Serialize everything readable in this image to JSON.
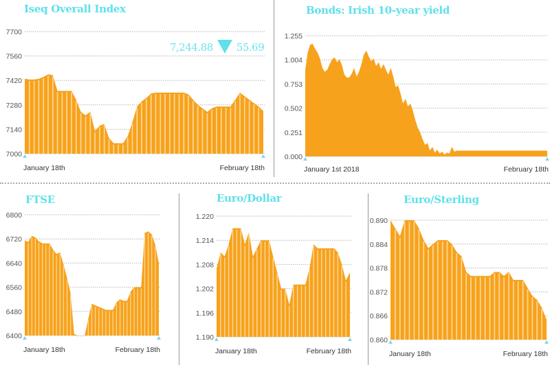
{
  "colors": {
    "fill": "#f7a21c",
    "stripe": "#fbd79a",
    "title": "#5fe0ea",
    "axis_marker": "#7fd6e8",
    "grid": "#b5b5b5"
  },
  "iseq_readout": {
    "value": "7,244.88",
    "direction": "down-triangle-icon",
    "change": "55.69"
  },
  "chart_data": [
    {
      "id": "iseq",
      "type": "area",
      "title": "Iseq Overall Index",
      "yticks": [
        "7700",
        "7560",
        "7420",
        "7280",
        "7140",
        "7000"
      ],
      "ylim": [
        7000,
        7700
      ],
      "xlabels": [
        "January 18th",
        "February 18th"
      ],
      "grid": true,
      "values": [
        7430,
        7425,
        7425,
        7430,
        7440,
        7455,
        7450,
        7360,
        7360,
        7360,
        7360,
        7310,
        7240,
        7220,
        7240,
        7130,
        7160,
        7170,
        7090,
        7060,
        7060,
        7060,
        7100,
        7180,
        7270,
        7300,
        7320,
        7345,
        7350,
        7350,
        7350,
        7350,
        7350,
        7350,
        7350,
        7340,
        7310,
        7280,
        7260,
        7240,
        7260,
        7270,
        7270,
        7270,
        7270,
        7310,
        7350,
        7330,
        7310,
        7290,
        7270,
        7245
      ]
    },
    {
      "id": "bonds",
      "type": "area",
      "title": "Bonds: Irish 10-year yield",
      "yticks": [
        "1.255",
        "1.004",
        "0.753",
        "0.502",
        "0.251",
        "0.000"
      ],
      "ylim": [
        0.0,
        1.255
      ],
      "xlabels": [
        "January 1st 2018",
        "February 18th"
      ],
      "grid": true,
      "values": [
        0.9,
        1.08,
        1.16,
        1.17,
        1.12,
        1.08,
        1.02,
        0.92,
        0.88,
        0.9,
        0.96,
        1.01,
        1.03,
        0.98,
        1.01,
        0.95,
        0.85,
        0.82,
        0.82,
        0.86,
        0.92,
        0.83,
        0.88,
        0.96,
        1.06,
        1.1,
        1.04,
        0.99,
        1.02,
        0.94,
        0.98,
        0.91,
        0.96,
        0.9,
        0.85,
        0.92,
        0.83,
        0.72,
        0.74,
        0.65,
        0.55,
        0.6,
        0.52,
        0.55,
        0.48,
        0.38,
        0.3,
        0.25,
        0.18,
        0.12,
        0.14,
        0.06,
        0.1,
        0.04,
        0.07,
        0.03,
        0.05,
        0.02,
        0.04,
        0.03,
        0.1,
        0.05,
        0.06,
        0.06,
        0.06,
        0.06,
        0.06,
        0.06,
        0.06,
        0.06,
        0.06,
        0.06,
        0.06,
        0.06,
        0.06,
        0.06,
        0.06,
        0.06,
        0.06,
        0.06,
        0.06,
        0.06,
        0.06,
        0.06,
        0.06,
        0.06,
        0.06,
        0.06,
        0.06,
        0.06,
        0.06,
        0.06,
        0.06,
        0.06,
        0.06,
        0.06,
        0.06,
        0.06,
        0.06,
        0.06
      ]
    },
    {
      "id": "ftse",
      "type": "area",
      "title": "FTSE",
      "yticks": [
        "6800",
        "6720",
        "6640",
        "6560",
        "6480",
        "6400"
      ],
      "ylim": [
        6400,
        6800
      ],
      "xlabels": [
        "January 18th",
        "February 18th"
      ],
      "grid": true,
      "values": [
        6715,
        6710,
        6730,
        6725,
        6712,
        6705,
        6705,
        6705,
        6685,
        6670,
        6675,
        6635,
        6590,
        6540,
        6405,
        6400,
        6400,
        6400,
        6455,
        6505,
        6500,
        6495,
        6490,
        6485,
        6485,
        6485,
        6510,
        6520,
        6515,
        6515,
        6545,
        6560,
        6560,
        6560,
        6740,
        6745,
        6735,
        6700,
        6640
      ]
    },
    {
      "id": "eurodollar",
      "type": "area",
      "title": "Euro/Dollar",
      "yticks": [
        "1.220",
        "1.214",
        "1.208",
        "1.202",
        "1.196",
        "1.190"
      ],
      "ylim": [
        1.19,
        1.22
      ],
      "xlabels": [
        "January 18th",
        "February 18th"
      ],
      "grid": true,
      "values": [
        1.207,
        1.211,
        1.21,
        1.213,
        1.217,
        1.217,
        1.217,
        1.213,
        1.216,
        1.21,
        1.212,
        1.214,
        1.214,
        1.214,
        1.21,
        1.206,
        1.202,
        1.202,
        1.198,
        1.203,
        1.203,
        1.203,
        1.203,
        1.207,
        1.213,
        1.212,
        1.212,
        1.212,
        1.212,
        1.212,
        1.211,
        1.208,
        1.204,
        1.206
      ]
    },
    {
      "id": "eurosterling",
      "type": "area",
      "title": "Euro/Sterling",
      "yticks": [
        "0.890",
        "0.884",
        "0.878",
        "0.872",
        "0.866",
        "0.860"
      ],
      "ylim": [
        0.86,
        0.89
      ],
      "xlabels": [
        "January 18th",
        "February 18th"
      ],
      "grid": true,
      "values": [
        0.89,
        0.888,
        0.886,
        0.89,
        0.89,
        0.89,
        0.888,
        0.885,
        0.883,
        0.884,
        0.885,
        0.885,
        0.885,
        0.884,
        0.882,
        0.881,
        0.877,
        0.876,
        0.876,
        0.876,
        0.876,
        0.876,
        0.877,
        0.877,
        0.876,
        0.877,
        0.875,
        0.875,
        0.875,
        0.873,
        0.871,
        0.87,
        0.868,
        0.865
      ]
    }
  ]
}
